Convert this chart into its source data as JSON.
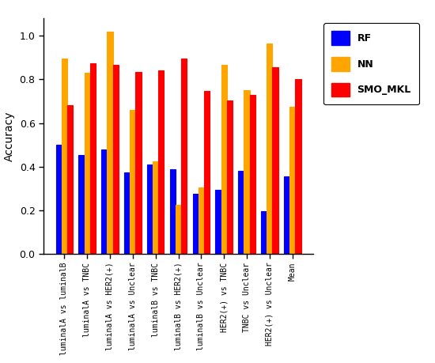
{
  "categories": [
    "luminalA vs luminalB",
    "luminalA vs TNBC",
    "luminalA vs HER2(+)",
    "luminalA vs Unclear",
    "luminalB vs TNBC",
    "luminalB vs HER2(+)",
    "luminalB vs Unclear",
    "HER2(+) vs TNBC",
    "TNBC vs Unclear",
    "HER2(+) vs Unclear",
    "Mean"
  ],
  "RF": [
    0.5,
    0.455,
    0.48,
    0.375,
    0.41,
    0.39,
    0.275,
    0.295,
    0.38,
    0.195,
    0.355
  ],
  "NN": [
    0.895,
    0.83,
    1.02,
    0.66,
    0.425,
    0.225,
    0.305,
    0.865,
    0.75,
    0.965,
    0.675
  ],
  "SMO_MKL": [
    0.68,
    0.875,
    0.865,
    0.835,
    0.84,
    0.895,
    0.745,
    0.705,
    0.73,
    0.855,
    0.8
  ],
  "bar_colors": {
    "RF": "#0000ff",
    "NN": "#ffa500",
    "SMO_MKL": "#ff0000"
  },
  "ylabel": "Accuracy",
  "ylim": [
    0.0,
    1.08
  ],
  "yticks": [
    0.0,
    0.2,
    0.4,
    0.6,
    0.8,
    1.0
  ],
  "legend_labels": [
    "RF",
    "NN",
    "SMO_MKL"
  ],
  "background_color": "#ffffff",
  "bar_width": 0.25
}
